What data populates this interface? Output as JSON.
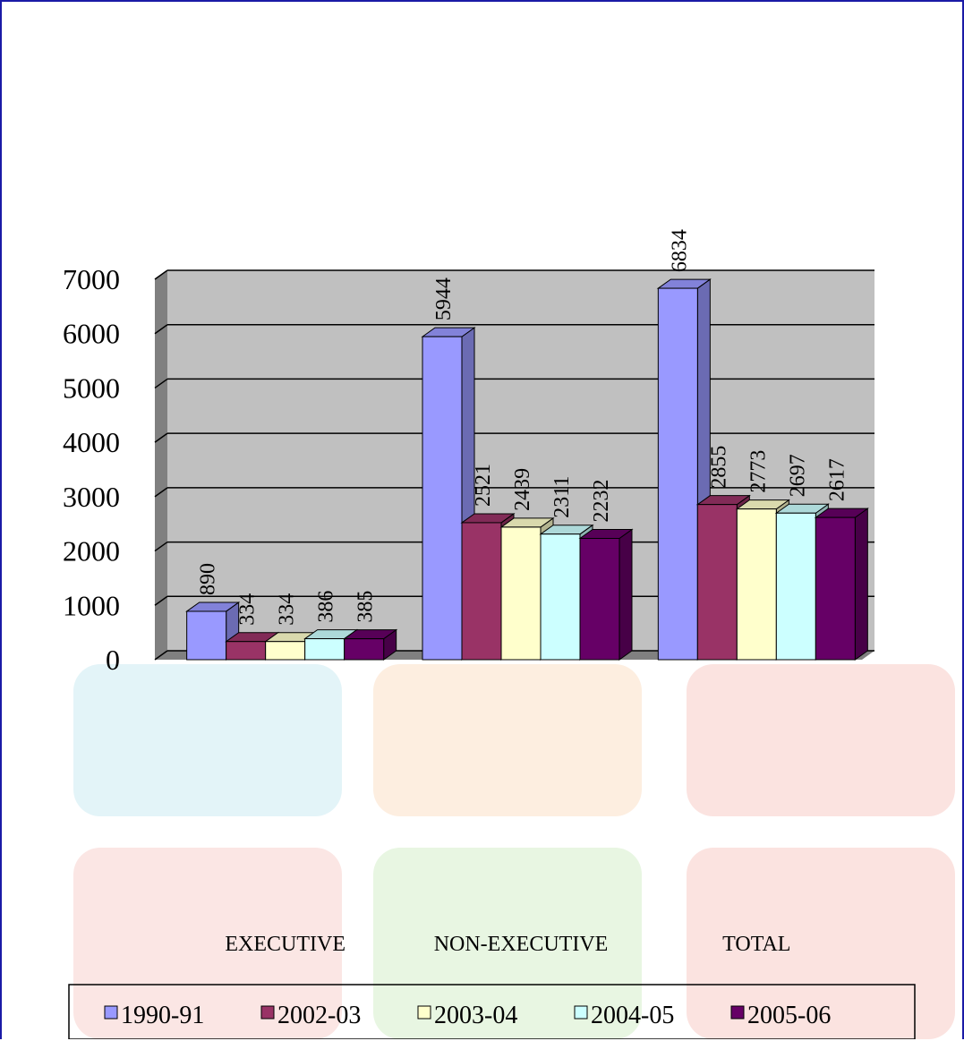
{
  "chart_data": {
    "type": "bar",
    "categories": [
      "EXECUTIVE",
      "NON-EXECUTIVE",
      "TOTAL"
    ],
    "series": [
      {
        "name": "1990-91",
        "color": "#9999ff",
        "values": [
          890,
          5944,
          6834
        ]
      },
      {
        "name": "2002-03",
        "color": "#993366",
        "values": [
          334,
          2521,
          2855
        ]
      },
      {
        "name": "2003-04",
        "color": "#ffffcc",
        "values": [
          334,
          2439,
          2773
        ]
      },
      {
        "name": "2004-05",
        "color": "#ccffff",
        "values": [
          386,
          2311,
          2697
        ]
      },
      {
        "name": "2005-06",
        "color": "#660066",
        "values": [
          385,
          2232,
          2617
        ]
      }
    ],
    "ylim": [
      0,
      7000
    ],
    "yticks": [
      0,
      1000,
      2000,
      3000,
      4000,
      5000,
      6000,
      7000
    ],
    "grid": true,
    "legend": "bottom"
  }
}
